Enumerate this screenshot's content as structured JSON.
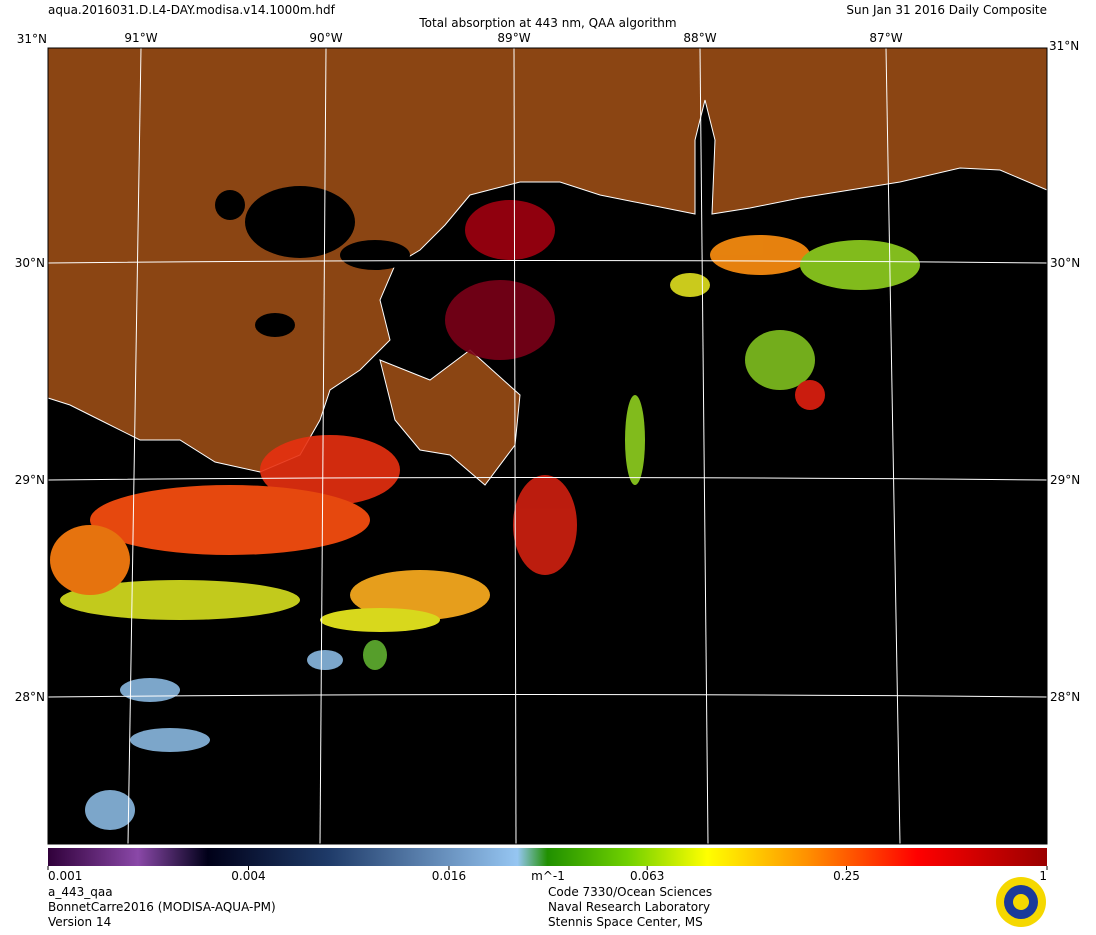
{
  "header": {
    "filename": "aqua.2016031.D.L4-DAY.modisa.v14.1000m.hdf",
    "title": "Total absorption at 443 nm, QAA algorithm",
    "date": "Sun Jan 31 2016 Daily Composite"
  },
  "map": {
    "lon_labels": [
      "91°W",
      "90°W",
      "89°W",
      "88°W",
      "87°W"
    ],
    "lat_labels": [
      "30°N",
      "29°N",
      "28°N"
    ],
    "corner_label": "31°N"
  },
  "colorbar": {
    "scale": "log",
    "lim": [
      0.001,
      1
    ],
    "ticks": [
      0.001,
      0.004,
      0.016,
      0.063,
      0.25,
      1
    ],
    "unit": "m^-1"
  },
  "footer": {
    "left": [
      "a_443_qaa",
      "BonnetCarre2016 (MODISA-AQUA-PM)",
      "Version 14"
    ],
    "right": [
      "Code 7330/Ocean Sciences",
      "Naval Research Laboratory",
      "Stennis Space Center, MS"
    ]
  }
}
